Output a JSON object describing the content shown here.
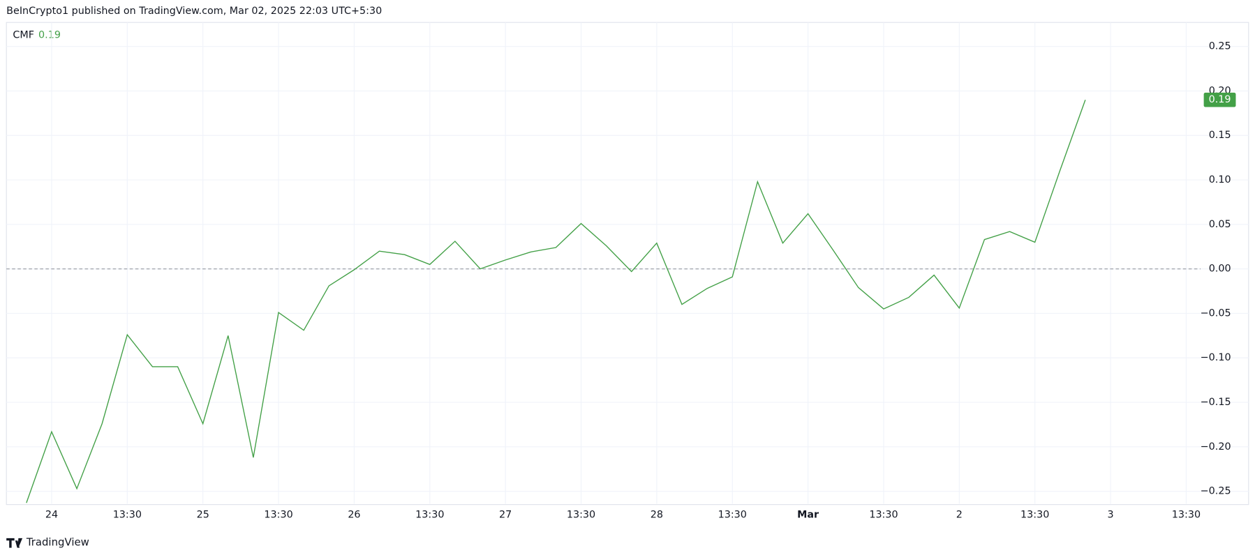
{
  "header": "BeInCrypto1 published on TradingView.com, Mar 02, 2025 22:03 UTC+5:30",
  "footer": "TradingView",
  "chart_data": {
    "type": "line",
    "title": "CMF",
    "x": [
      0,
      1,
      2,
      3,
      4,
      5,
      6,
      7,
      8,
      9,
      10,
      11,
      12,
      13,
      14,
      15,
      16,
      17,
      18,
      19,
      20,
      21,
      22,
      23,
      24,
      25,
      26,
      27,
      28,
      29,
      30,
      31,
      32,
      33,
      34,
      35,
      36,
      37,
      38,
      39,
      40,
      41,
      42
    ],
    "series": [
      {
        "name": "CMF",
        "color": "#43a047",
        "values": [
          -0.263,
          -0.183,
          -0.247,
          -0.174,
          -0.074,
          -0.11,
          -0.11,
          -0.174,
          -0.075,
          -0.212,
          -0.049,
          -0.069,
          -0.019,
          -0.001,
          0.02,
          0.016,
          0.005,
          0.031,
          0.0,
          0.01,
          0.019,
          0.024,
          0.051,
          0.026,
          -0.003,
          0.029,
          -0.04,
          -0.022,
          -0.009,
          0.098,
          0.029,
          0.062,
          0.021,
          -0.021,
          -0.045,
          -0.032,
          -0.007,
          -0.044,
          0.033,
          0.042,
          0.03,
          0.111,
          0.19
        ]
      }
    ],
    "xlim": [
      -0.794,
      46.57
    ],
    "xticks": [
      {
        "value": 1,
        "label": "24"
      },
      {
        "value": 4,
        "label": "13:30"
      },
      {
        "value": 7,
        "label": "25"
      },
      {
        "value": 10,
        "label": "13:30"
      },
      {
        "value": 13,
        "label": "26"
      },
      {
        "value": 16,
        "label": "13:30"
      },
      {
        "value": 19,
        "label": "27"
      },
      {
        "value": 22,
        "label": "13:30"
      },
      {
        "value": 25,
        "label": "28"
      },
      {
        "value": 28,
        "label": "13:30"
      },
      {
        "value": 31,
        "label": "Mar"
      },
      {
        "value": 34,
        "label": "13:30"
      },
      {
        "value": 37,
        "label": "2"
      },
      {
        "value": 40,
        "label": "13:30"
      },
      {
        "value": 43,
        "label": "3"
      },
      {
        "value": 46,
        "label": "13:30"
      }
    ],
    "ylim": [
      -0.264,
      0.277
    ],
    "yticks": [
      {
        "value": 0.25,
        "label": "0.25"
      },
      {
        "value": 0.2,
        "label": "0.20"
      },
      {
        "value": 0.15,
        "label": "0.15"
      },
      {
        "value": 0.1,
        "label": "0.10"
      },
      {
        "value": 0.05,
        "label": "0.05"
      },
      {
        "value": 0,
        "label": "0.00"
      },
      {
        "value": -0.05,
        "label": "−0.05"
      },
      {
        "value": -0.1,
        "label": "−0.10"
      },
      {
        "value": -0.15,
        "label": "−0.15"
      },
      {
        "value": -0.2,
        "label": "−0.20"
      },
      {
        "value": -0.25,
        "label": "−0.25"
      }
    ],
    "hline": 0,
    "grid": true
  }
}
